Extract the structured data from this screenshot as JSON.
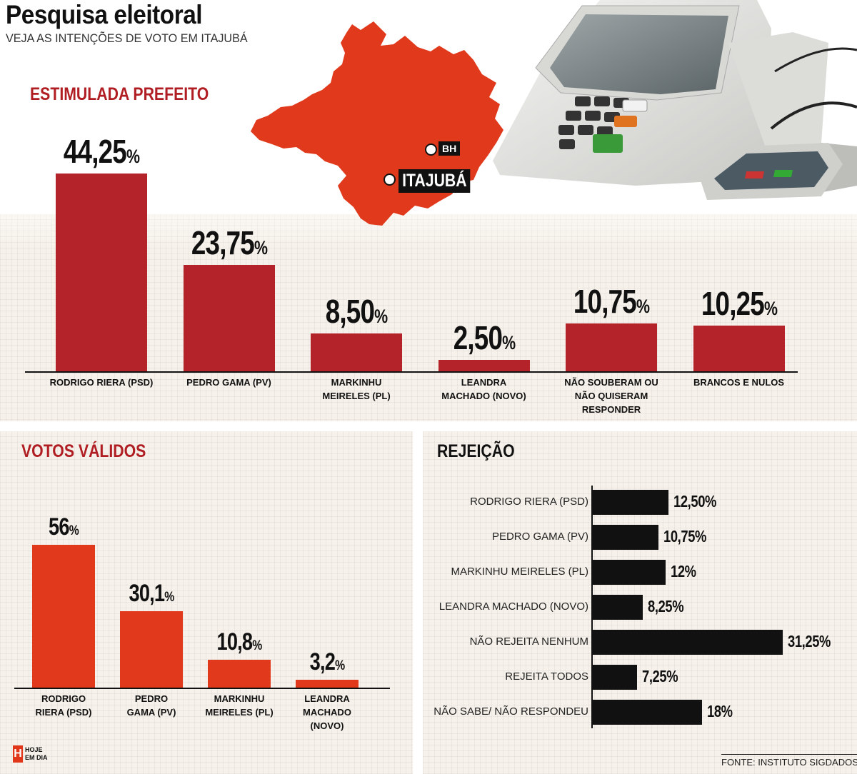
{
  "header": {
    "title": "Pesquisa eleitoral",
    "subtitle": "VEJA AS INTENÇÕES DE VOTO EM ITAJUBÁ"
  },
  "map": {
    "label_bh": "BH",
    "label_itajuba": "ITAJUBÁ"
  },
  "colors": {
    "dark_red": "#b5232a",
    "orange_red": "#e0391b",
    "black": "#111111",
    "title_red": "#b01e23"
  },
  "chart_data": [
    {
      "type": "bar",
      "title": "ESTIMULADA PREFEITO",
      "categories": [
        "RODRIGO RIERA (PSD)",
        "PEDRO GAMA (PV)",
        "MARKINHU MEIRELES (PL)",
        "LEANDRA MACHADO (NOVO)",
        "NÃO SOUBERAM OU NÃO QUISERAM RESPONDER",
        "BRANCOS E NULOS"
      ],
      "category_lines": [
        [
          "RODRIGO RIERA (PSD)"
        ],
        [
          "PEDRO GAMA (PV)"
        ],
        [
          "MARKINHU",
          "MEIRELES (PL)"
        ],
        [
          "LEANDRA",
          "MACHADO (NOVO)"
        ],
        [
          "NÃO SOUBERAM OU",
          "NÃO QUISERAM",
          "RESPONDER"
        ],
        [
          "BRANCOS E NULOS"
        ]
      ],
      "values": [
        44.25,
        23.75,
        8.5,
        2.5,
        10.75,
        10.25
      ],
      "labels": [
        "44,25",
        "23,75",
        "8,50",
        "2,50",
        "10,75",
        "10,25"
      ],
      "unit": "%",
      "color": "#b5232a",
      "ylim": [
        0,
        50
      ]
    },
    {
      "type": "bar",
      "title": "VOTOS VÁLIDOS",
      "categories": [
        "RODRIGO RIERA (PSD)",
        "PEDRO GAMA (PV)",
        "MARKINHU MEIRELES (PL)",
        "LEANDRA MACHADO (NOVO)"
      ],
      "category_lines": [
        [
          "RODRIGO",
          "RIERA (PSD)"
        ],
        [
          "PEDRO",
          "GAMA (PV)"
        ],
        [
          "MARKINHU",
          "MEIRELES (PL)"
        ],
        [
          "LEANDRA",
          "MACHADO (NOVO)"
        ]
      ],
      "values": [
        56,
        30.1,
        10.8,
        3.2
      ],
      "labels": [
        "56",
        "30,1",
        "10,8",
        "3,2"
      ],
      "unit": "%",
      "color": "#e0391b",
      "ylim": [
        0,
        60
      ]
    },
    {
      "type": "bar",
      "orientation": "horizontal",
      "title": "REJEIÇÃO",
      "categories": [
        "RODRIGO RIERA (PSD)",
        "PEDRO GAMA (PV)",
        "MARKINHU MEIRELES (PL)",
        "LEANDRA MACHADO (NOVO)",
        "NÃO REJEITA NENHUM",
        "REJEITA TODOS",
        "NÃO SABE/ NÃO RESPONDEU"
      ],
      "values": [
        12.5,
        10.75,
        12,
        8.25,
        31.25,
        7.25,
        18
      ],
      "labels": [
        "12,50%",
        "10,75%",
        "12%",
        "8,25%",
        "31,25%",
        "7,25%",
        "18%"
      ],
      "color": "#111111",
      "xlim": [
        0,
        32
      ]
    }
  ],
  "footer": {
    "logo_mark": "H",
    "logo_line1": "HOJE",
    "logo_line2": "EM DIA",
    "source": "FONTE: INSTITUTO SIGDADOS"
  }
}
